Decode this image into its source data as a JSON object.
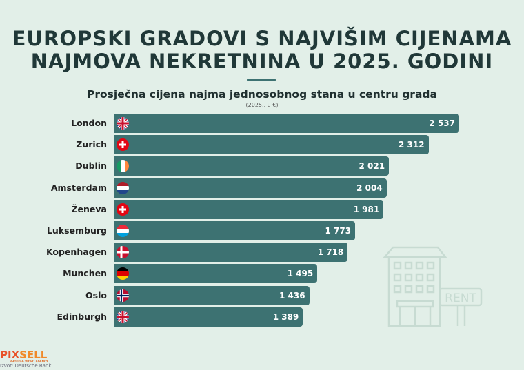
{
  "logo": {
    "text_a": "PIX",
    "text_b": "SELL",
    "tagline": "PHOTO & VIDEO AGENCY"
  },
  "source": "Izvor: Deutsche Bank",
  "decoration": {
    "sign_text": "RENT"
  },
  "chart_data": {
    "type": "bar",
    "orientation": "horizontal",
    "title": "EUROPSKI GRADOVI S NAJVIŠIM CIJENAMA NAJMOVA NEKRETNINA U 2025. GODINI",
    "subtitle": "Prosječna cijena najma jednosobnog stana u centru grada",
    "unit": "(2025., u €)",
    "categories": [
      "London",
      "Zurich",
      "Dublin",
      "Amsterdam",
      "Ženeva",
      "Luksemburg",
      "Kopenhagen",
      "Munchen",
      "Oslo",
      "Edinburgh"
    ],
    "values": [
      2537,
      2312,
      2021,
      2004,
      1981,
      1773,
      1718,
      1495,
      1436,
      1389
    ],
    "value_labels": [
      "2 537",
      "2 312",
      "2 021",
      "2 004",
      "1 981",
      "1 773",
      "1 718",
      "1 495",
      "1 436",
      "1 389"
    ],
    "flags": [
      "uk",
      "switzerland",
      "ireland",
      "netherlands",
      "switzerland",
      "luxembourg",
      "denmark",
      "germany",
      "norway",
      "uk"
    ],
    "bar_color": "#3d7272",
    "xlim": [
      0,
      2537
    ]
  }
}
